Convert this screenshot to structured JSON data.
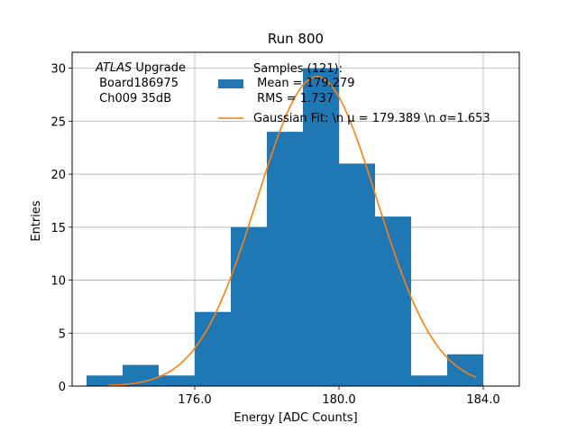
{
  "chart_data": {
    "type": "bar",
    "title": "Run 800",
    "xlabel": "Energy [ADC Counts]",
    "ylabel": "Entries",
    "xlim": [
      172.6,
      185.0
    ],
    "ylim": [
      0,
      31.5
    ],
    "x_ticks": [
      176.0,
      180.0,
      184.0
    ],
    "x_tick_labels": [
      "176.0",
      "180.0",
      "184.0"
    ],
    "y_ticks": [
      0,
      5,
      10,
      15,
      20,
      25,
      30
    ],
    "y_tick_labels": [
      "0",
      "5",
      "10",
      "15",
      "20",
      "25",
      "30"
    ],
    "grid": true,
    "bin_edges": [
      173.0,
      174.0,
      175.0,
      176.0,
      177.0,
      178.0,
      179.0,
      180.0,
      181.0,
      182.0,
      183.0,
      184.0
    ],
    "values": [
      1,
      2,
      1,
      7,
      15,
      24,
      30,
      21,
      16,
      1,
      3
    ],
    "fit": {
      "type": "gaussian",
      "mu": 179.389,
      "sigma": 1.653,
      "amplitude": 29.2,
      "x_range": [
        173.6,
        183.8
      ]
    },
    "annotation": {
      "italic_part": "ATLAS",
      "rest": " Upgrade",
      "lines": [
        " Board186975",
        " Ch009 35dB"
      ]
    },
    "legend": {
      "position": "top-right",
      "entries": [
        {
          "kind": "patch",
          "lines": [
            "Samples (121):",
            " Mean = 179.279",
            " RMS = 1.737"
          ],
          "color": "#1f77b4"
        },
        {
          "kind": "line",
          "lines": [
            "Gaussian Fit: \\n μ = 179.389 \\n σ=1.653"
          ],
          "color": "#ff7f0e"
        }
      ]
    },
    "colors": {
      "bars": "#1f77b4",
      "fit": "#ff7f0e",
      "grid": "#b0b0b0"
    }
  }
}
